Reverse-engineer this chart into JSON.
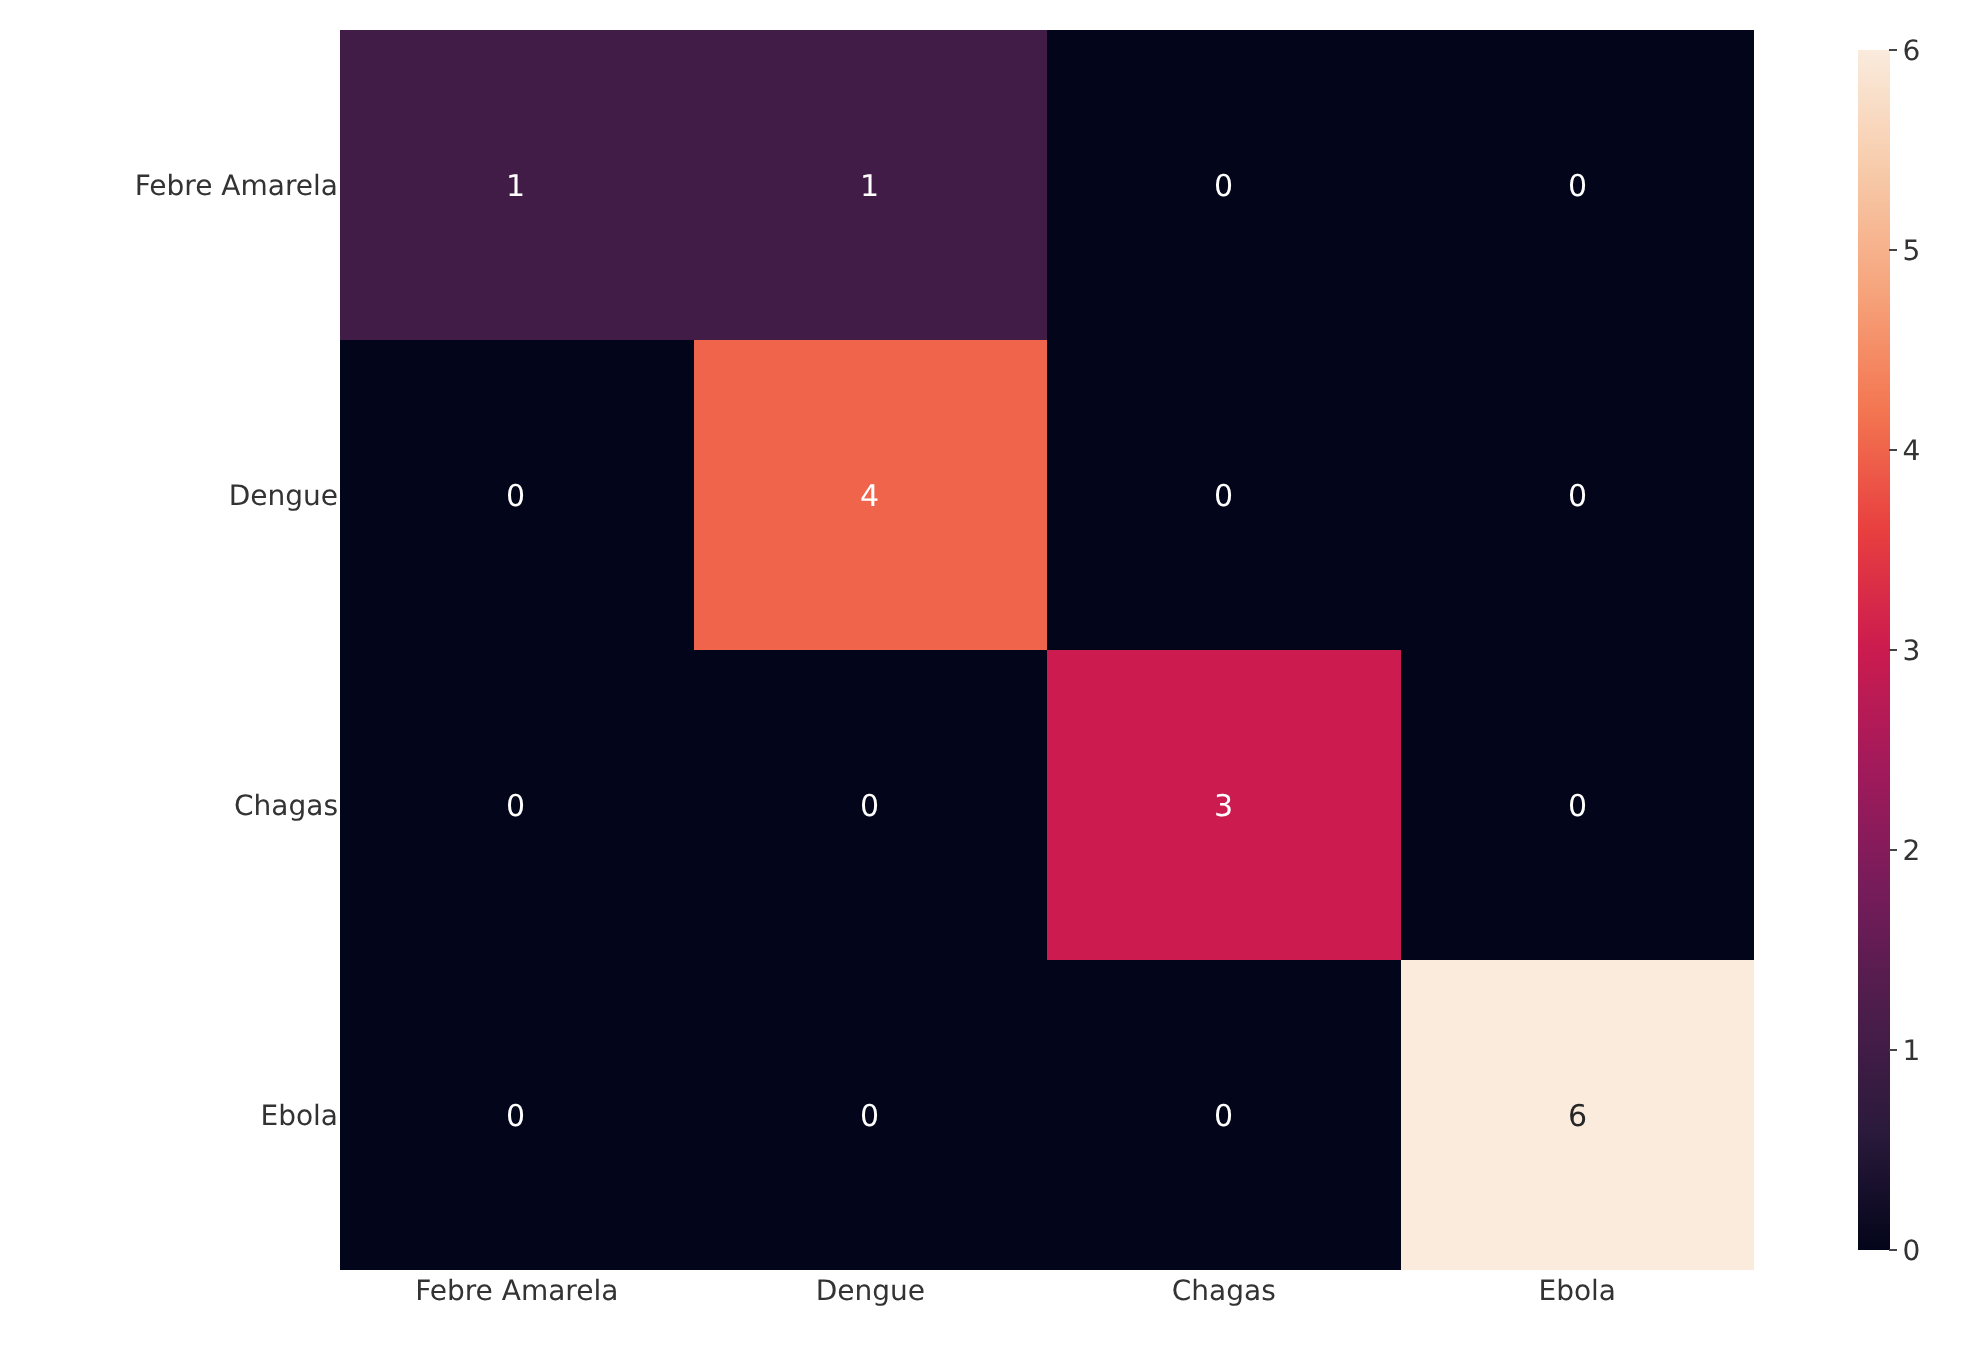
{
  "chart_data": {
    "type": "heatmap",
    "categories": [
      "Febre Amarela",
      "Dengue",
      "Chagas",
      "Ebola"
    ],
    "y_categories": [
      "Febre Amarela",
      "Dengue",
      "Chagas",
      "Ebola"
    ],
    "cells": [
      [
        1,
        1,
        0,
        0
      ],
      [
        0,
        4,
        0,
        0
      ],
      [
        0,
        0,
        3,
        0
      ],
      [
        0,
        0,
        0,
        6
      ]
    ],
    "clim": [
      0,
      6
    ],
    "cticks": [
      0,
      1,
      2,
      3,
      4,
      5,
      6
    ],
    "data_labels": true
  }
}
